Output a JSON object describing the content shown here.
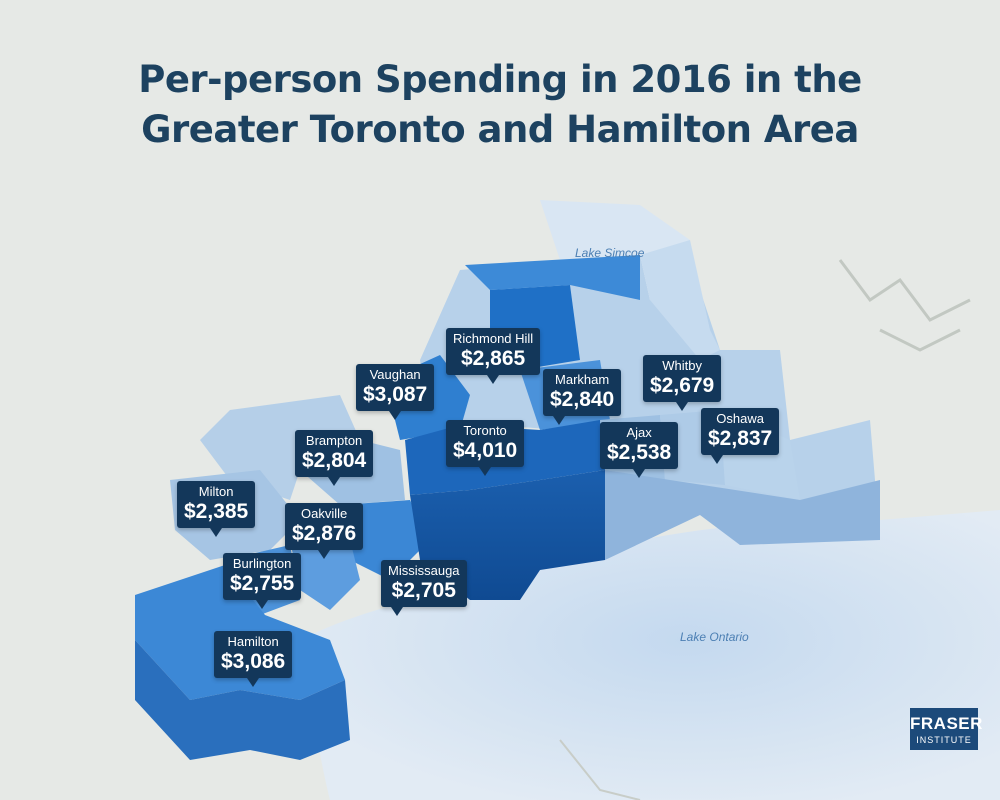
{
  "title": {
    "line1": "Per-person Spending in 2016 in the",
    "line2": "Greater Toronto and Hamilton Area"
  },
  "water": {
    "lake_simcoe": "Lake Simcoe",
    "lake_ontario": "Lake Ontario"
  },
  "municipalities": [
    {
      "name": "Richmond Hill",
      "value": "$2,865"
    },
    {
      "name": "Vaughan",
      "value": "$3,087"
    },
    {
      "name": "Markham",
      "value": "$2,840"
    },
    {
      "name": "Whitby",
      "value": "$2,679"
    },
    {
      "name": "Brampton",
      "value": "$2,804"
    },
    {
      "name": "Toronto",
      "value": "$4,010"
    },
    {
      "name": "Ajax",
      "value": "$2,538"
    },
    {
      "name": "Oshawa",
      "value": "$2,837"
    },
    {
      "name": "Milton",
      "value": "$2,385"
    },
    {
      "name": "Oakville",
      "value": "$2,876"
    },
    {
      "name": "Mississauga",
      "value": "$2,705"
    },
    {
      "name": "Burlington",
      "value": "$2,755"
    },
    {
      "name": "Hamilton",
      "value": "$3,086"
    }
  ],
  "logo": {
    "line1": "FRASER",
    "line2": "INSTITUTE"
  },
  "colors": {
    "title": "#1d4260",
    "callout": "#13375a",
    "region_dark": "#1e6cc2",
    "region_mid": "#3a86d6",
    "region_light": "#a9c8e6",
    "lake": "#d3e2f1",
    "land": "#e6e9e6"
  }
}
